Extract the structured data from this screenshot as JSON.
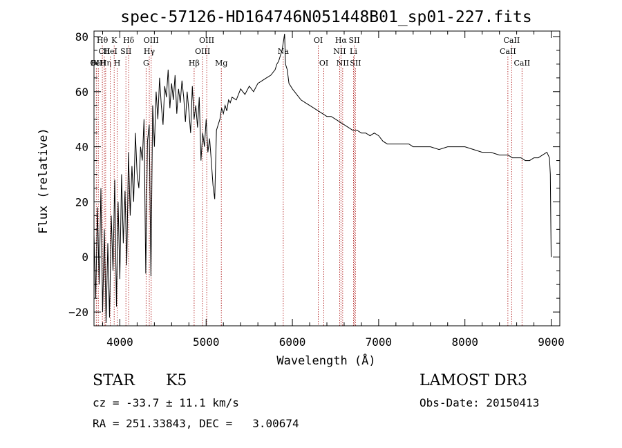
{
  "chart_data": {
    "type": "line",
    "title": "spec-57126-HD164746N051448B01_sp01-227.fits",
    "xlabel": "Wavelength (Å)",
    "ylabel": "Flux (relative)",
    "xlim": [
      3700,
      9100
    ],
    "ylim": [
      -25,
      82
    ],
    "xticks": [
      4000,
      5000,
      6000,
      7000,
      8000,
      9000
    ],
    "yticks": [
      -20,
      0,
      20,
      40,
      60,
      80
    ],
    "series": [
      {
        "name": "flux",
        "x": [
          3700,
          3720,
          3740,
          3760,
          3780,
          3800,
          3820,
          3840,
          3860,
          3880,
          3900,
          3920,
          3940,
          3960,
          3980,
          4000,
          4020,
          4040,
          4060,
          4080,
          4100,
          4120,
          4140,
          4160,
          4180,
          4200,
          4220,
          4240,
          4260,
          4280,
          4300,
          4320,
          4340,
          4360,
          4380,
          4400,
          4420,
          4440,
          4460,
          4480,
          4500,
          4520,
          4540,
          4560,
          4580,
          4600,
          4620,
          4640,
          4660,
          4680,
          4700,
          4720,
          4740,
          4760,
          4780,
          4800,
          4820,
          4840,
          4860,
          4880,
          4900,
          4920,
          4940,
          4960,
          4980,
          5000,
          5020,
          5040,
          5060,
          5080,
          5100,
          5120,
          5140,
          5160,
          5180,
          5200,
          5220,
          5240,
          5260,
          5280,
          5300,
          5350,
          5400,
          5450,
          5500,
          5550,
          5600,
          5650,
          5700,
          5750,
          5800,
          5820,
          5840,
          5860,
          5880,
          5900,
          5910,
          5920,
          5940,
          5960,
          6000,
          6050,
          6100,
          6150,
          6200,
          6250,
          6300,
          6350,
          6400,
          6450,
          6500,
          6550,
          6600,
          6650,
          6700,
          6750,
          6800,
          6850,
          6900,
          6950,
          7000,
          7050,
          7100,
          7150,
          7200,
          7250,
          7300,
          7350,
          7400,
          7450,
          7500,
          7600,
          7700,
          7800,
          7900,
          8000,
          8100,
          8200,
          8300,
          8400,
          8500,
          8550,
          8600,
          8650,
          8700,
          8750,
          8800,
          8850,
          8900,
          8950,
          8980,
          8990,
          9000
        ],
        "y": [
          8,
          -15,
          18,
          -10,
          25,
          -20,
          10,
          -24,
          5,
          -22,
          15,
          -5,
          28,
          -18,
          20,
          -8,
          30,
          5,
          24,
          -3,
          38,
          15,
          33,
          20,
          45,
          30,
          25,
          40,
          35,
          50,
          -6,
          42,
          48,
          -7,
          55,
          40,
          60,
          50,
          65,
          55,
          48,
          62,
          58,
          68,
          54,
          63,
          57,
          66,
          52,
          61,
          56,
          64,
          58,
          49,
          60,
          53,
          45,
          62,
          50,
          55,
          47,
          58,
          35,
          45,
          40,
          50,
          38,
          43,
          35,
          26,
          21,
          46,
          48,
          50,
          54,
          52,
          55,
          53,
          57,
          56,
          58,
          57,
          61,
          59,
          62,
          60,
          63,
          64,
          65,
          66,
          68,
          70,
          71,
          73,
          75,
          79,
          81,
          70,
          68,
          63,
          61,
          59,
          57,
          56,
          55,
          54,
          53,
          52,
          51,
          51,
          50,
          49,
          48,
          47,
          46,
          46,
          45,
          45,
          44,
          45,
          44,
          42,
          41,
          41,
          41,
          41,
          41,
          41,
          40,
          40,
          40,
          40,
          39,
          40,
          40,
          40,
          39,
          38,
          38,
          37,
          37,
          36,
          36,
          36,
          35,
          35,
          36,
          36,
          37,
          38,
          36,
          30,
          0
        ]
      }
    ],
    "lines": [
      {
        "name": "Hθ",
        "x": 3797,
        "row": 0
      },
      {
        "name": "CII",
        "x": 3820,
        "row": 1
      },
      {
        "name": "OII",
        "x": 3727,
        "row": 2
      },
      {
        "name": "FeII",
        "x": 3750,
        "row": 2
      },
      {
        "name": "Hη",
        "x": 3835,
        "row": 2
      },
      {
        "name": "HeI",
        "x": 3889,
        "row": 1
      },
      {
        "name": "K",
        "x": 3934,
        "row": 0
      },
      {
        "name": "H",
        "x": 3969,
        "row": 2
      },
      {
        "name": "SII",
        "x": 4070,
        "row": 1
      },
      {
        "name": "Hδ",
        "x": 4102,
        "row": 0
      },
      {
        "name": "G",
        "x": 4304,
        "row": 2
      },
      {
        "name": "OIII",
        "x": 4363,
        "row": 0
      },
      {
        "name": "Hγ",
        "x": 4341,
        "row": 1
      },
      {
        "name": "Hβ",
        "x": 4861,
        "row": 2
      },
      {
        "name": "OIII",
        "x": 4959,
        "row": 1
      },
      {
        "name": "OIII",
        "x": 5007,
        "row": 0
      },
      {
        "name": "Mg",
        "x": 5176,
        "row": 2
      },
      {
        "name": "Na",
        "x": 5894,
        "row": 1
      },
      {
        "name": "OI",
        "x": 6300,
        "row": 0
      },
      {
        "name": "OI",
        "x": 6364,
        "row": 2
      },
      {
        "name": "Hα",
        "x": 6563,
        "row": 0
      },
      {
        "name": "NII",
        "x": 6548,
        "row": 1
      },
      {
        "name": "NII",
        "x": 6583,
        "row": 2
      },
      {
        "name": "Li",
        "x": 6708,
        "row": 1
      },
      {
        "name": "SII",
        "x": 6717,
        "row": 0
      },
      {
        "name": "SII",
        "x": 6731,
        "row": 2
      },
      {
        "name": "CaII",
        "x": 8542,
        "row": 0
      },
      {
        "name": "CaII",
        "x": 8498,
        "row": 1
      },
      {
        "name": "CaII",
        "x": 8662,
        "row": 2
      }
    ]
  },
  "info": {
    "class": "STAR",
    "subclass": "K5",
    "survey": "LAMOST DR3",
    "cz": "cz = -33.7 ± 11.1 km/s",
    "obs_date": "Obs-Date: 20150413",
    "radec": "RA = 251.33843, DEC =   3.00674"
  }
}
